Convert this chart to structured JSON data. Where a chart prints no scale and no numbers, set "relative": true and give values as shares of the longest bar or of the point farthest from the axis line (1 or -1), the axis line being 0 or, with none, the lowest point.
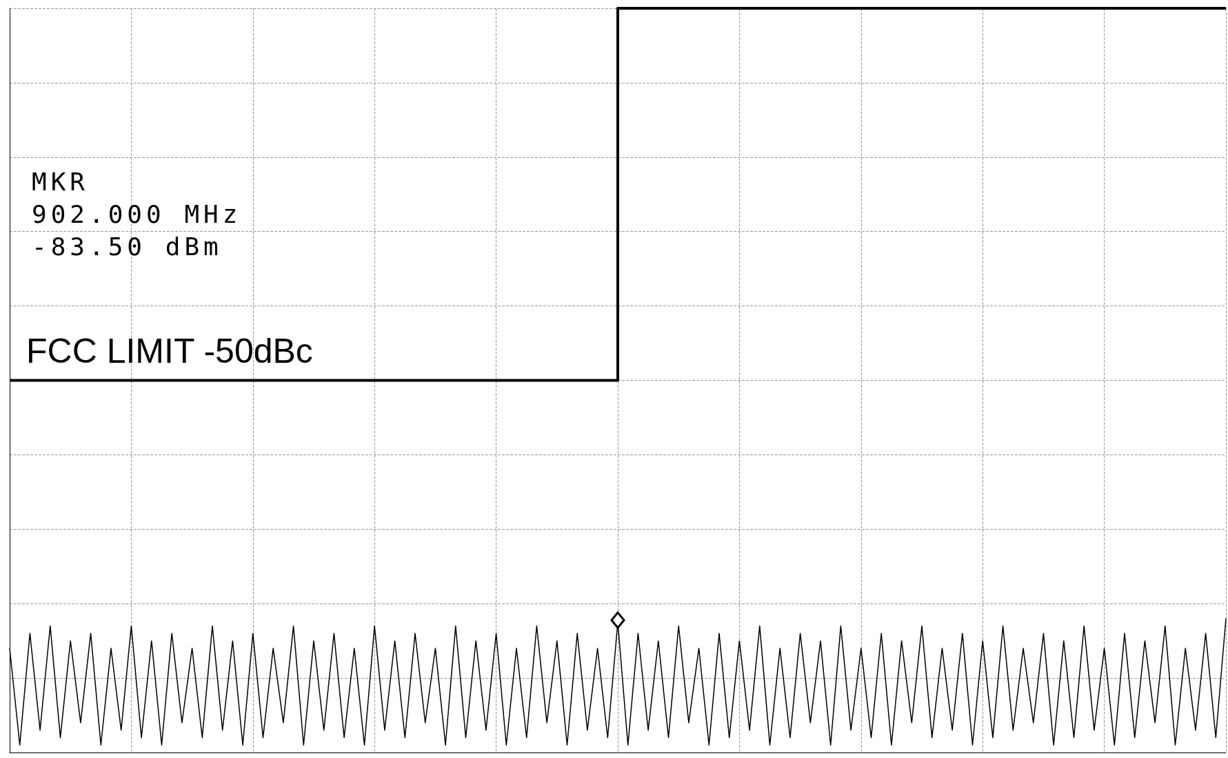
{
  "chart_data": {
    "type": "line",
    "relative": true,
    "grid": true,
    "marker": "none",
    "line_style": "solid",
    "categories": [
      null,
      null,
      null,
      null,
      null,
      null,
      null,
      null,
      null,
      null,
      null,
      null,
      null,
      null,
      null,
      null,
      null,
      null,
      null,
      null,
      null,
      null,
      null,
      null,
      null,
      null,
      null,
      null,
      null,
      null,
      null,
      null,
      null,
      null,
      null,
      null,
      null,
      null,
      null,
      null,
      null,
      null,
      null,
      null,
      null,
      null,
      null,
      null,
      null,
      null,
      null,
      null,
      null,
      null,
      null,
      null,
      null,
      null,
      null,
      null,
      null,
      null,
      null,
      null,
      null,
      null,
      null,
      null,
      null,
      null,
      null,
      null,
      null,
      null,
      null,
      null,
      null,
      null,
      null,
      null,
      null,
      null,
      null,
      null,
      null,
      null,
      null,
      null,
      null,
      null,
      null,
      null,
      null,
      null,
      null,
      null,
      null,
      null,
      null,
      null,
      null,
      null,
      null,
      null,
      null,
      null,
      null,
      null,
      null,
      null,
      null,
      null,
      null,
      null,
      null,
      null,
      null,
      null,
      null,
      null,
      null
    ],
    "series": [
      {
        "color": "#000000",
        "values": [
          0.14,
          0.01,
          0.16,
          0.03,
          0.17,
          0.02,
          0.15,
          0.04,
          0.16,
          0.01,
          0.14,
          0.03,
          0.17,
          0.02,
          0.15,
          0.01,
          0.16,
          0.04,
          0.14,
          0.02,
          0.17,
          0.03,
          0.15,
          0.01,
          0.16,
          0.02,
          0.14,
          0.04,
          0.17,
          0.01,
          0.15,
          0.03,
          0.16,
          0.02,
          0.14,
          0.01,
          0.17,
          0.03,
          0.15,
          0.02,
          0.16,
          0.04,
          0.14,
          0.01,
          0.17,
          0.02,
          0.15,
          0.03,
          0.16,
          0.01,
          0.14,
          0.02,
          0.17,
          0.04,
          0.15,
          0.01,
          0.16,
          0.03,
          0.14,
          0.02,
          0.175,
          0.01,
          0.16,
          0.03,
          0.15,
          0.02,
          0.17,
          0.04,
          0.14,
          0.01,
          0.16,
          0.02,
          0.15,
          0.03,
          0.17,
          0.01,
          0.14,
          0.02,
          0.16,
          0.04,
          0.15,
          0.01,
          0.17,
          0.03,
          0.14,
          0.02,
          0.16,
          0.01,
          0.15,
          0.04,
          0.17,
          0.02,
          0.14,
          0.03,
          0.16,
          0.01,
          0.15,
          0.02,
          0.17,
          0.03,
          0.14,
          0.04,
          0.16,
          0.01,
          0.15,
          0.02,
          0.17,
          0.03,
          0.14,
          0.01,
          0.16,
          0.02,
          0.15,
          0.04,
          0.17,
          0.01,
          0.14,
          0.03,
          0.16,
          0.02,
          0.18
        ]
      },
      {
        "type": "step",
        "color": "#000000",
        "values": [
          0.5,
          0.5,
          0.5,
          0.5,
          0.5,
          0.5,
          0.5,
          0.5,
          0.5,
          0.5,
          0.5,
          0.5,
          0.5,
          0.5,
          0.5,
          0.5,
          0.5,
          0.5,
          0.5,
          0.5,
          0.5,
          0.5,
          0.5,
          0.5,
          0.5,
          0.5,
          0.5,
          0.5,
          0.5,
          0.5,
          0.5,
          0.5,
          0.5,
          0.5,
          0.5,
          0.5,
          0.5,
          0.5,
          0.5,
          0.5,
          0.5,
          0.5,
          0.5,
          0.5,
          0.5,
          0.5,
          0.5,
          0.5,
          0.5,
          0.5,
          0.5,
          0.5,
          0.5,
          0.5,
          0.5,
          0.5,
          0.5,
          0.5,
          0.5,
          0.5,
          1,
          1,
          1,
          1,
          1,
          1,
          1,
          1,
          1,
          1,
          1,
          1,
          1,
          1,
          1,
          1,
          1,
          1,
          1,
          1,
          1,
          1,
          1,
          1,
          1,
          1,
          1,
          1,
          1,
          1,
          1,
          1,
          1,
          1,
          1,
          1,
          1,
          1,
          1,
          1,
          1,
          1,
          1,
          1,
          1,
          1,
          1,
          1,
          1,
          1,
          1,
          1,
          1,
          1,
          1,
          1,
          1,
          1,
          1,
          1,
          1
        ]
      }
    ],
    "annotations": [
      "MKR\n902.000 MHz\n-83.50 dBm",
      "FCC LIMIT -50dBc"
    ]
  }
}
